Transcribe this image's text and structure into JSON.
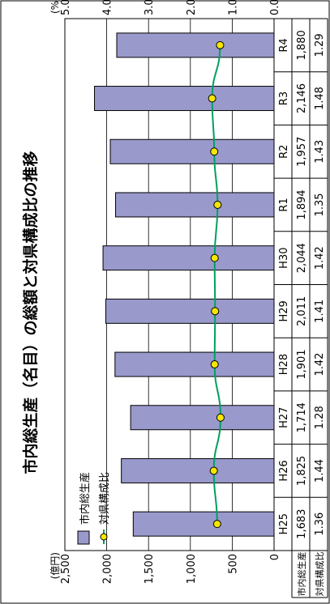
{
  "chart_data": {
    "type": "bar",
    "title": "市内総生産（名目）の総額と対県構成比の推移",
    "categories": [
      "H25",
      "H26",
      "H27",
      "H28",
      "H29",
      "H30",
      "R1",
      "R2",
      "R3",
      "R4"
    ],
    "series": [
      {
        "name": "市内総生産",
        "type": "bar",
        "axis": "left",
        "values": [
          1683,
          1825,
          1714,
          1901,
          2011,
          2044,
          1894,
          1957,
          2146,
          1880
        ],
        "labels": [
          "1,683",
          "1,825",
          "1,714",
          "1,901",
          "2,011",
          "2,044",
          "1,894",
          "1,957",
          "2,146",
          "1,880"
        ],
        "color": "#9999cc"
      },
      {
        "name": "対県構成比",
        "type": "line",
        "axis": "right",
        "values": [
          1.36,
          1.44,
          1.28,
          1.42,
          1.41,
          1.42,
          1.35,
          1.43,
          1.48,
          1.29
        ],
        "labels": [
          "1.36",
          "1.44",
          "1.28",
          "1.42",
          "1.41",
          "1.42",
          "1.35",
          "1.43",
          "1.48",
          "1.29"
        ],
        "line_color": "#00a060",
        "marker_color": "#f5e600"
      }
    ],
    "left_axis": {
      "unit": "(億円)",
      "range": [
        0,
        2500
      ],
      "ticks": [
        0,
        500,
        1000,
        1500,
        2000,
        2500
      ],
      "tick_labels": [
        "0",
        "500",
        "1,000",
        "1,500",
        "2,000",
        "2,500"
      ]
    },
    "right_axis": {
      "unit": "(%)",
      "range": [
        0.0,
        5.0
      ],
      "ticks": [
        0,
        1,
        2,
        3,
        4,
        5
      ],
      "tick_labels": [
        "0.0",
        "1.0",
        "2.0",
        "3.0",
        "4.0",
        "5.0"
      ]
    },
    "grid": true,
    "legend": {
      "position": "top-left",
      "entries": [
        "市内総生産",
        "対県構成比"
      ]
    },
    "table_row_headers": [
      "市内総生産",
      "対県構成比"
    ]
  }
}
